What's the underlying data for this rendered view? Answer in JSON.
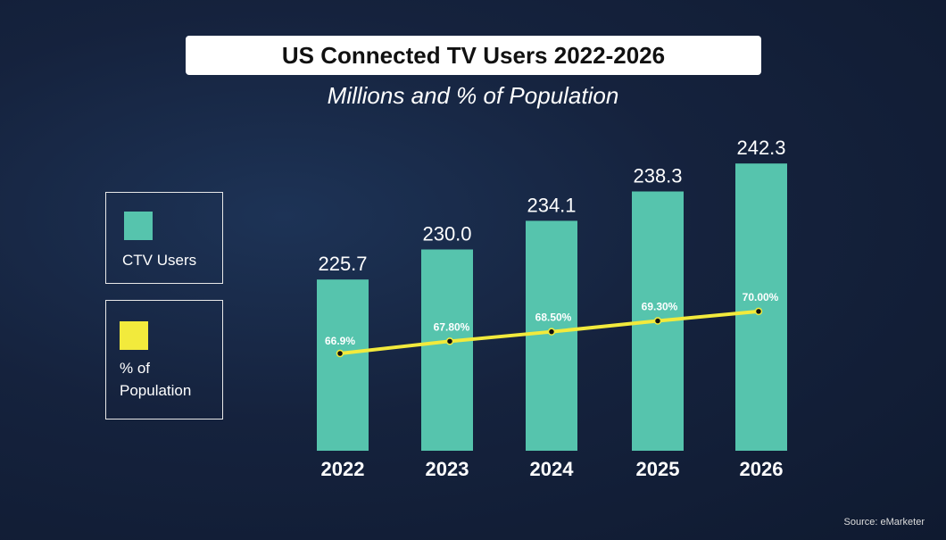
{
  "chart_data": {
    "type": "bar",
    "title": "US Connected TV Users 2022-2026",
    "subtitle": "Millions and % of Population",
    "categories": [
      "2022",
      "2023",
      "2024",
      "2025",
      "2026"
    ],
    "series": [
      {
        "name": "CTV Users",
        "type": "bar",
        "color": "#56c4ad",
        "values": [
          225.7,
          230.0,
          234.1,
          238.3,
          242.3
        ],
        "labels": [
          "225.7",
          "230.0",
          "234.1",
          "238.3",
          "242.3"
        ]
      },
      {
        "name": "% of Population",
        "type": "line",
        "color": "#f2ea3c",
        "values": [
          66.9,
          67.8,
          68.5,
          69.3,
          70.0
        ],
        "labels": [
          "66.9%",
          "67.80%",
          "68.50%",
          "69.30%",
          "70.00%"
        ]
      }
    ],
    "legend": {
      "placement": "left",
      "items": [
        "CTV Users",
        "% of Population"
      ]
    },
    "source": "Source: eMarketer"
  }
}
